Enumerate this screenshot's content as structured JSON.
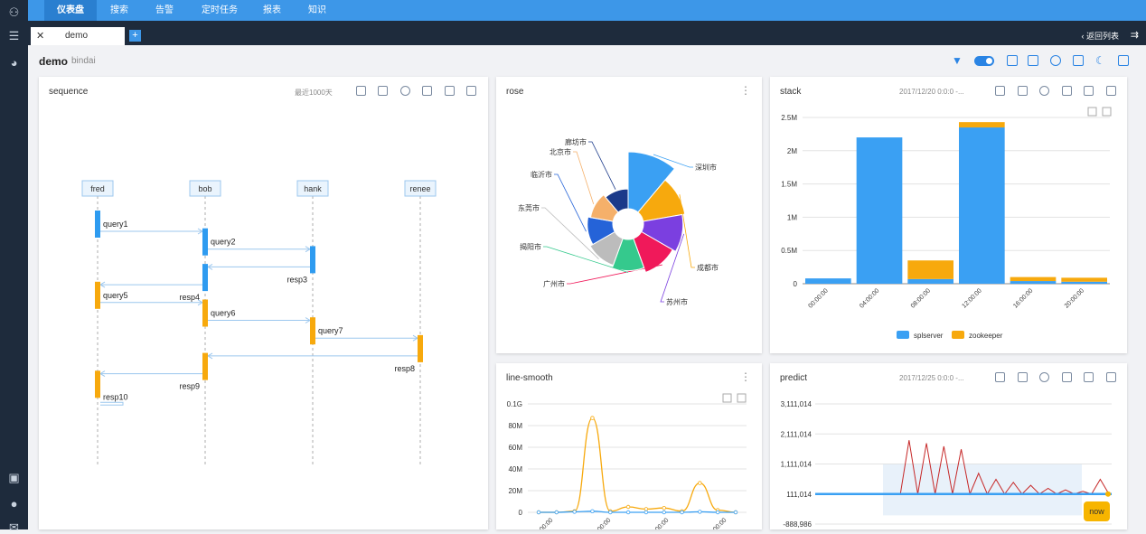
{
  "nav": {
    "items": [
      "仪表盘",
      "搜索",
      "告警",
      "定时任务",
      "报表",
      "知识"
    ]
  },
  "tab": {
    "label": "demo",
    "back_label": "返回列表"
  },
  "dashboard": {
    "title": "demo",
    "subtitle": "bindai"
  },
  "panels": {
    "sequence": {
      "title": "sequence",
      "range": "最近1000天"
    },
    "rose": {
      "title": "rose"
    },
    "stack": {
      "title": "stack",
      "range": "2017/12/20 0:0:0 -..."
    },
    "line_smooth": {
      "title": "line-smooth"
    },
    "predict": {
      "title": "predict",
      "range": "2017/12/25 0:0:0 -...",
      "now_label": "now"
    }
  },
  "chart_data": [
    {
      "type": "sequence",
      "title": "sequence",
      "actors": [
        "fred",
        "bob",
        "hank",
        "renee"
      ],
      "messages": [
        {
          "from": "fred",
          "to": "bob",
          "label": "query1"
        },
        {
          "from": "bob",
          "to": "hank",
          "label": "query2"
        },
        {
          "from": "hank",
          "to": "bob",
          "label": "resp3"
        },
        {
          "from": "bob",
          "to": "fred",
          "label": "resp4"
        },
        {
          "from": "fred",
          "to": "bob",
          "label": "query5"
        },
        {
          "from": "bob",
          "to": "hank",
          "label": "query6"
        },
        {
          "from": "hank",
          "to": "renee",
          "label": "query7"
        },
        {
          "from": "renee",
          "to": "bob",
          "label": "resp8"
        },
        {
          "from": "bob",
          "to": "fred",
          "label": "resp9"
        },
        {
          "from": "fred",
          "to": "fred",
          "label": "resp10"
        }
      ]
    },
    {
      "type": "pie",
      "title": "rose",
      "labels": [
        "深圳市",
        "成都市",
        "苏州市",
        "广州市",
        "揭阳市",
        "东莞市",
        "临沂市",
        "北京市",
        "廊坊市"
      ],
      "values": [
        100,
        55,
        48,
        40,
        30,
        25,
        20,
        16,
        12
      ]
    },
    {
      "type": "bar",
      "title": "stack",
      "categories": [
        "00:00:00",
        "04:00:00",
        "08:00:00",
        "12:00:00",
        "16:00:00",
        "20:00:00"
      ],
      "series": [
        {
          "name": "splserver",
          "values": [
            80000,
            2200000,
            70000,
            2350000,
            40000,
            30000
          ]
        },
        {
          "name": "zookeeper",
          "values": [
            0,
            0,
            280000,
            80000,
            60000,
            60000
          ]
        }
      ],
      "yticks": [
        "0",
        "0.5M",
        "1M",
        "1.5M",
        "2M",
        "2.5M"
      ],
      "ylim": [
        0,
        2500000
      ]
    },
    {
      "type": "line",
      "title": "line-smooth",
      "x": [
        0,
        1,
        2,
        3,
        4,
        5,
        6,
        7,
        8,
        9,
        10,
        11
      ],
      "series": [
        {
          "values": [
            0,
            0,
            1000000,
            87000000,
            1000000,
            5000000,
            3000000,
            4000000,
            1000000,
            27000000,
            2000000,
            0
          ]
        },
        {
          "values": [
            0,
            0,
            500000,
            1000000,
            0,
            0,
            0,
            0,
            0,
            500000,
            0,
            0
          ]
        }
      ],
      "yticks": [
        "0",
        "20M",
        "40M",
        "60M",
        "80M",
        "0.1G"
      ],
      "xticks": [
        "00:00",
        "00:00",
        "00:00",
        "00:00"
      ],
      "ylim": [
        0,
        100000000
      ]
    },
    {
      "type": "line",
      "title": "predict",
      "yticks": [
        "-888,986",
        "111,014",
        "1,111,014",
        "2,111,014",
        "3,111,014"
      ],
      "ylim": [
        -888986,
        3111014
      ],
      "series": [
        {
          "values": [
            111014,
            111014,
            111014,
            1900000,
            111014,
            1800000,
            111014,
            1700000,
            111014,
            1600000,
            111014,
            800000,
            111014,
            600000,
            111014,
            500000,
            111014,
            400000,
            111014,
            300000,
            111014,
            250000,
            111014,
            200000,
            111014,
            600000,
            111014
          ]
        }
      ]
    }
  ]
}
